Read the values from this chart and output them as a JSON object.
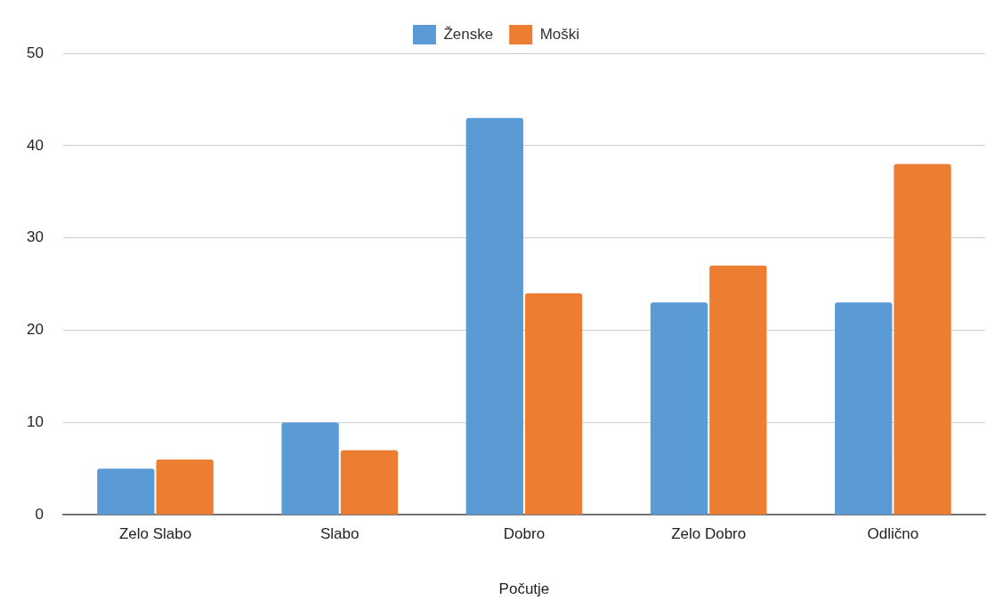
{
  "chart_data": {
    "type": "bar",
    "xlabel": "Počutje",
    "categories": [
      "Zelo Slabo",
      "Slabo",
      "Dobro",
      "Zelo Dobro",
      "Odlično"
    ],
    "series": [
      {
        "name": "Ženske",
        "color": "#5b9bd5",
        "values": [
          5,
          10,
          43,
          23,
          23
        ]
      },
      {
        "name": "Moški",
        "color": "#ed7d31",
        "values": [
          6,
          7,
          24,
          27,
          38
        ]
      }
    ],
    "ylim": [
      0,
      50
    ],
    "yticks": [
      0,
      10,
      20,
      30,
      40,
      50
    ],
    "grid": "y",
    "legend": "top"
  }
}
